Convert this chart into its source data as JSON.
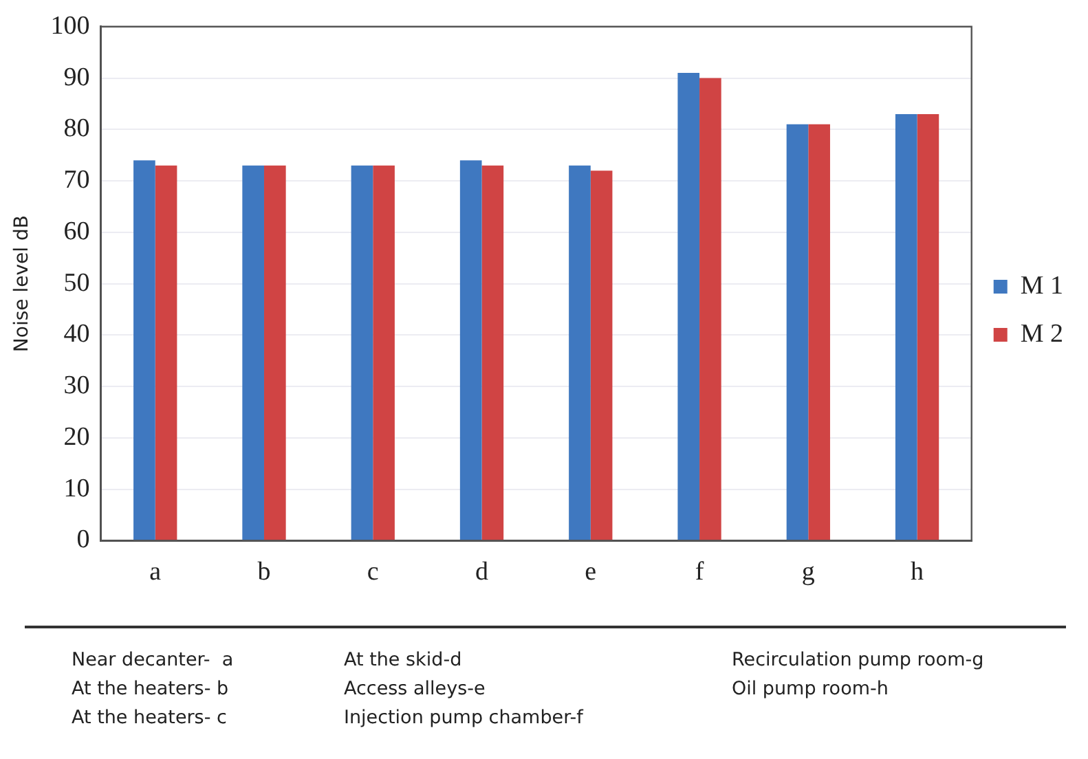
{
  "chart_data": {
    "type": "bar",
    "ylabel": "Noise level dB",
    "categories": [
      "a",
      "b",
      "c",
      "d",
      "e",
      "f",
      "g",
      "h"
    ],
    "series": [
      {
        "name": "M 1",
        "color": "#3f78c0",
        "values": [
          74,
          73,
          73,
          74,
          73,
          91,
          81,
          83
        ]
      },
      {
        "name": "M 2",
        "color": "#d04444",
        "values": [
          73,
          73,
          73,
          73,
          72,
          90,
          81,
          83
        ]
      }
    ],
    "ylim": [
      0,
      100
    ],
    "yticks": [
      0,
      10,
      20,
      30,
      40,
      50,
      60,
      70,
      80,
      90,
      100
    ],
    "grid": "y",
    "legend": "right",
    "annotations": [
      "Near decanter-  a",
      "At the heaters- b",
      "At the heaters- c",
      "At the skid-d",
      "Access alleys-e",
      "Injection pump chamber-f",
      "Recirculation pump room-g",
      "Oil pump room-h"
    ]
  }
}
